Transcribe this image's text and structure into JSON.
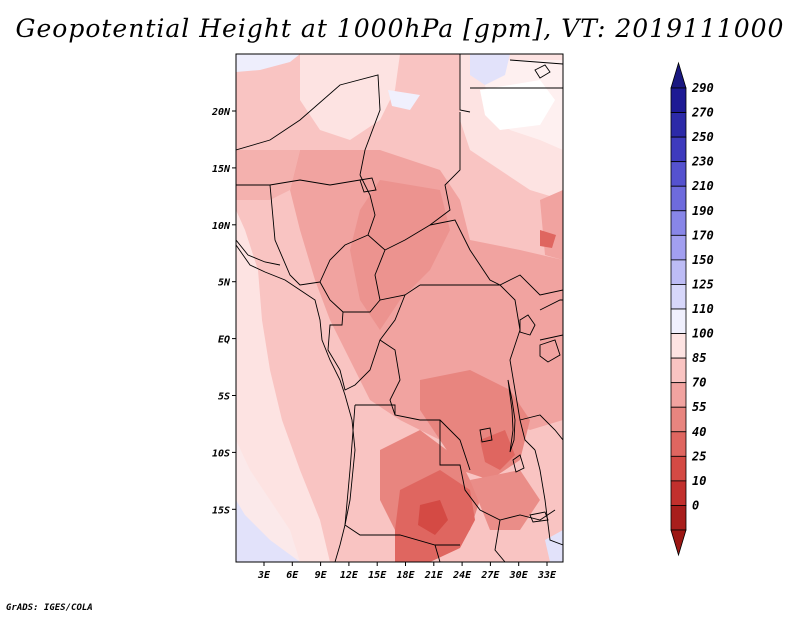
{
  "title": "Geopotential Height at 1000hPa [gpm], VT: 2019111000",
  "credit": "GrADS: IGES/COLA",
  "map": {
    "lon_ticks": [
      "3E",
      "6E",
      "9E",
      "12E",
      "15E",
      "18E",
      "21E",
      "24E",
      "27E",
      "30E",
      "33E"
    ],
    "lat_ticks": [
      "20N",
      "15N",
      "10N",
      "5N",
      "EQ",
      "5S",
      "10S",
      "15S"
    ]
  },
  "colorbar": {
    "labels": [
      "290",
      "270",
      "250",
      "230",
      "210",
      "190",
      "170",
      "150",
      "125",
      "110",
      "100",
      "85",
      "70",
      "55",
      "40",
      "25",
      "10",
      "0"
    ],
    "colors": [
      "#1d1a94",
      "#2c2aa8",
      "#3e3bbd",
      "#5552cf",
      "#6e6bdd",
      "#8886e8",
      "#a29ff0",
      "#bdbcf5",
      "#d7d7fa",
      "#f0f0fd",
      "#fde3e2",
      "#f9c4c2",
      "#f1a3a0",
      "#e8857f",
      "#df6660",
      "#d44a44",
      "#c2302d",
      "#a81e1c"
    ],
    "top_color": "#1a1880",
    "bottom_color": "#9c1714"
  }
}
